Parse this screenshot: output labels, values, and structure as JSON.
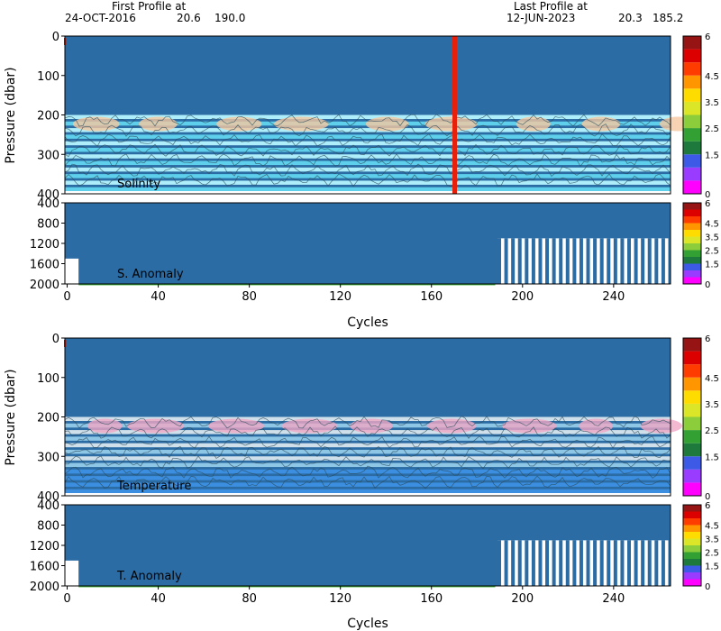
{
  "header": {
    "first_profile_label": "First Profile at",
    "first_profile_date": "24-OCT-2016",
    "first_profile_lat": "20.6",
    "first_profile_lon": "190.0",
    "last_profile_label": "Last Profile at",
    "last_profile_date": "12-JUN-2023",
    "last_profile_lat": "20.3",
    "last_profile_lon": "185.2"
  },
  "colorbar_ticks": [
    "6",
    "4.5",
    "3.5",
    "2.5",
    "1.5",
    "0"
  ],
  "colorbar_colors": [
    "#ff00ff",
    "#9a3cff",
    "#3c5ae6",
    "#1e7a3c",
    "#32a032",
    "#8ccd3c",
    "#dce628",
    "#ffdc00",
    "#ff9600",
    "#ff3c00",
    "#dc0000",
    "#961414"
  ],
  "chart_data": [
    {
      "type": "heatmap",
      "title": "Solinity",
      "ylabel": "Pressure (dbar)",
      "xlabel": "",
      "xlim": [
        -1,
        265
      ],
      "ylim": [
        400,
        0
      ],
      "y_ticks": [
        "0",
        "100",
        "200",
        "300",
        "400"
      ],
      "x_ticks": [],
      "band_colors": [
        "#aeeefa",
        "#5fd0ec"
      ],
      "warm_color": "#f5c8a0",
      "bg_color": "#2b6ca4",
      "marker_color": "#e6200a",
      "highlight_cycle": 170
    },
    {
      "type": "heatmap",
      "title": "S. Anomaly",
      "ylabel": "",
      "xlabel": "Cycles",
      "xlim": [
        -1,
        265
      ],
      "ylim": [
        2000,
        400
      ],
      "y_ticks": [
        "400",
        "800",
        "1200",
        "1600",
        "2000"
      ],
      "x_ticks": [
        "0",
        "40",
        "80",
        "120",
        "160",
        "200",
        "240"
      ],
      "bg_color": "#2b6ca4",
      "profile_depth_start_cycle": 189,
      "profile_depth": 1100
    },
    {
      "type": "heatmap",
      "title": "Temperature",
      "ylabel": "Pressure (dbar)",
      "xlabel": "",
      "xlim": [
        -1,
        265
      ],
      "ylim": [
        400,
        0
      ],
      "y_ticks": [
        "0",
        "100",
        "200",
        "300",
        "400"
      ],
      "x_ticks": [],
      "band_colors": [
        "#cfe0ea",
        "#8ec6e6"
      ],
      "warm_color": "#f0a8c4",
      "deep_color": "#3c8fe0",
      "bg_color": "#2b6ca4",
      "marker_color": "#e6200a"
    },
    {
      "type": "heatmap",
      "title": "T. Anomaly",
      "ylabel": "",
      "xlabel": "Cycles",
      "xlim": [
        -1,
        265
      ],
      "ylim": [
        2000,
        400
      ],
      "y_ticks": [
        "400",
        "800",
        "1200",
        "1600",
        "2000"
      ],
      "x_ticks": [
        "0",
        "40",
        "80",
        "120",
        "160",
        "200",
        "240"
      ],
      "bg_color": "#2b6ca4",
      "profile_depth_start_cycle": 189,
      "profile_depth": 1100
    }
  ]
}
